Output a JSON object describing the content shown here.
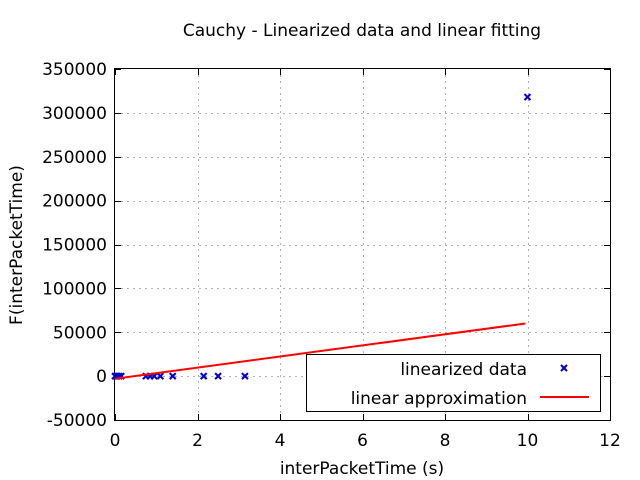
{
  "chart_data": {
    "type": "scatter",
    "title": "Cauchy - Linearized data and linear fitting",
    "xlabel": "interPacketTime (s)",
    "ylabel": "F(interPacketTime)",
    "xlim": [
      0,
      12
    ],
    "ylim": [
      -50000,
      350000
    ],
    "xticks": [
      0,
      2,
      4,
      6,
      8,
      10,
      12
    ],
    "yticks": [
      -50000,
      0,
      50000,
      100000,
      150000,
      200000,
      250000,
      300000,
      350000
    ],
    "grid": true,
    "legend_position": "bottom-right",
    "series": [
      {
        "name": "linearized data",
        "kind": "points",
        "marker": "x",
        "color": "#0000cc",
        "points": [
          {
            "x": 0.0,
            "y": 0
          },
          {
            "x": 0.03,
            "y": 0
          },
          {
            "x": 0.06,
            "y": 0
          },
          {
            "x": 0.1,
            "y": 0
          },
          {
            "x": 0.15,
            "y": 0
          },
          {
            "x": 0.75,
            "y": 0
          },
          {
            "x": 0.85,
            "y": 0
          },
          {
            "x": 0.95,
            "y": 0
          },
          {
            "x": 1.1,
            "y": 0
          },
          {
            "x": 1.4,
            "y": 0
          },
          {
            "x": 2.15,
            "y": 0
          },
          {
            "x": 2.5,
            "y": 0
          },
          {
            "x": 3.15,
            "y": 0
          },
          {
            "x": 10.0,
            "y": 0
          },
          {
            "x": 10.0,
            "y": 318000
          }
        ]
      },
      {
        "name": "linear approximation",
        "kind": "line",
        "color": "#ff0000",
        "points": [
          {
            "x": 0.0,
            "y": -3000
          },
          {
            "x": 9.95,
            "y": 60000
          }
        ]
      }
    ]
  }
}
